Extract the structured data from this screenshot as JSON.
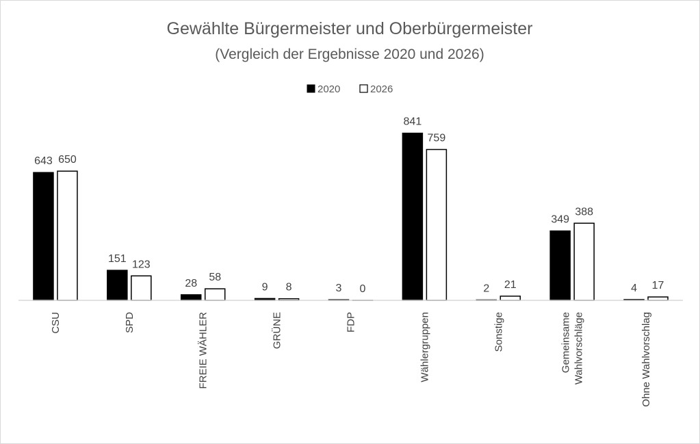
{
  "chart_data": {
    "type": "bar",
    "title": "Gewählte Bürgermeister und Oberbürgermeister",
    "subtitle": "(Vergleich der Ergebnisse 2020 und 2026)",
    "categories": [
      [
        "CSU"
      ],
      [
        "SPD"
      ],
      [
        "FREIE WÄHLER"
      ],
      [
        "GRÜNE"
      ],
      [
        "FDP"
      ],
      [
        "Wählergruppen"
      ],
      [
        "Sonstige"
      ],
      [
        "Gemeinsame",
        "Wahlvorschläge"
      ],
      [
        "Ohne Wahlvorschlag"
      ]
    ],
    "series": [
      {
        "name": "2020",
        "color": "#000000",
        "values": [
          643,
          151,
          28,
          9,
          3,
          841,
          2,
          349,
          4
        ]
      },
      {
        "name": "2026",
        "color": "#ffffff",
        "values": [
          650,
          123,
          58,
          8,
          0,
          759,
          21,
          388,
          17
        ]
      }
    ],
    "ylim": [
      0,
      900
    ],
    "legend": "top",
    "grid": false,
    "xlabel": "",
    "ylabel": ""
  }
}
